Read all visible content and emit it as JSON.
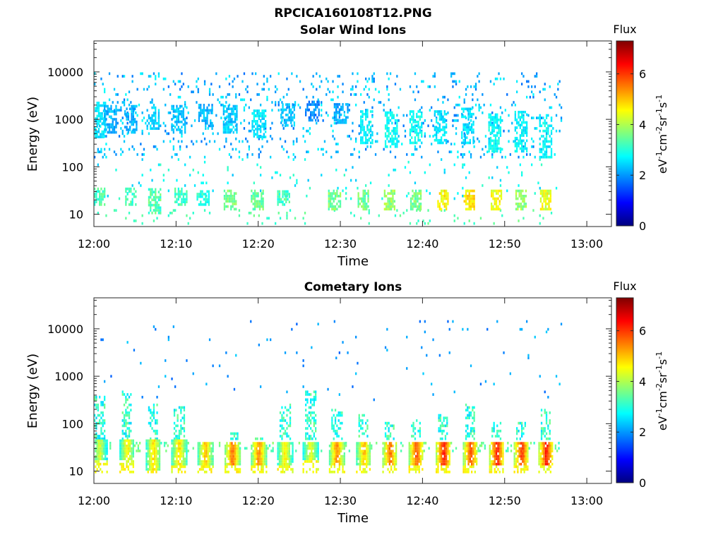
{
  "figure_title": "RPCICA160108T12.PNG",
  "colors": {
    "axis": "#262626",
    "background": "#ffffff",
    "colormap": [
      "#00007f",
      "#0000ff",
      "#007fff",
      "#00ffff",
      "#7fff7f",
      "#ffff00",
      "#ff7f00",
      "#ff0000",
      "#7f0000"
    ]
  },
  "chart_data": [
    {
      "type": "heatmap",
      "title": "Solar Wind Ions",
      "xlabel": "Time",
      "ylabel": "Energy (eV)",
      "xlim": [
        "12:00",
        "13:03"
      ],
      "ylim": [
        5.5,
        45000
      ],
      "y_scale": "log",
      "x_ticks": [
        "12:00",
        "12:10",
        "12:20",
        "12:30",
        "12:40",
        "12:50",
        "13:00"
      ],
      "y_ticks": [
        "10",
        "100",
        "1000",
        "10000"
      ],
      "colorbar": {
        "title": "Flux",
        "label": "eV-1cm-2sr-1s-1",
        "range": [
          0,
          7.3
        ],
        "ticks": [
          "0",
          "2",
          "4",
          "6"
        ]
      },
      "data_extent_x": [
        "12:00",
        "12:57"
      ],
      "grid": false,
      "bursts": [
        {
          "t": 0.5,
          "e_lo": 400,
          "e_hi": 2200,
          "flux": 2.6
        },
        {
          "t": 2.0,
          "e_lo": 500,
          "e_hi": 2000,
          "flux": 2.2
        },
        {
          "t": 4.5,
          "e_lo": 500,
          "e_hi": 1800,
          "flux": 2.2
        },
        {
          "t": 7.2,
          "e_lo": 600,
          "e_hi": 2000,
          "flux": 2.4
        },
        {
          "t": 10.2,
          "e_lo": 500,
          "e_hi": 2000,
          "flux": 2.3
        },
        {
          "t": 13.5,
          "e_lo": 600,
          "e_hi": 2000,
          "flux": 2.2
        },
        {
          "t": 16.5,
          "e_lo": 500,
          "e_hi": 2000,
          "flux": 2.4
        },
        {
          "t": 20.0,
          "e_lo": 400,
          "e_hi": 1600,
          "flux": 2.6
        },
        {
          "t": 23.5,
          "e_lo": 700,
          "e_hi": 2000,
          "flux": 2.3
        },
        {
          "t": 26.5,
          "e_lo": 900,
          "e_hi": 2200,
          "flux": 1.9
        },
        {
          "t": 30.0,
          "e_lo": 800,
          "e_hi": 2000,
          "flux": 2.1
        },
        {
          "t": 33.2,
          "e_lo": 300,
          "e_hi": 1500,
          "flux": 2.7
        },
        {
          "t": 36.2,
          "e_lo": 250,
          "e_hi": 1400,
          "flux": 2.8
        },
        {
          "t": 39.2,
          "e_lo": 300,
          "e_hi": 1500,
          "flux": 2.8
        },
        {
          "t": 42.2,
          "e_lo": 300,
          "e_hi": 1500,
          "flux": 2.6
        },
        {
          "t": 45.5,
          "e_lo": 300,
          "e_hi": 1600,
          "flux": 2.5
        },
        {
          "t": 48.8,
          "e_lo": 200,
          "e_hi": 1300,
          "flux": 2.8
        },
        {
          "t": 52.0,
          "e_lo": 200,
          "e_hi": 1400,
          "flux": 2.7
        },
        {
          "t": 55.0,
          "e_lo": 150,
          "e_hi": 1200,
          "flux": 2.7
        }
      ],
      "low_energy_bands": [
        {
          "t": 0.5,
          "e_lo": 15,
          "e_hi": 35,
          "flux": 3.2
        },
        {
          "t": 4.5,
          "e_lo": 15,
          "e_hi": 35,
          "flux": 3.2
        },
        {
          "t": 7.3,
          "e_lo": 10,
          "e_hi": 35,
          "flux": 3.3
        },
        {
          "t": 10.5,
          "e_lo": 15,
          "e_hi": 35,
          "flux": 3.2
        },
        {
          "t": 13.2,
          "e_lo": 15,
          "e_hi": 30,
          "flux": 3.0
        },
        {
          "t": 16.5,
          "e_lo": 12,
          "e_hi": 30,
          "flux": 3.6
        },
        {
          "t": 19.8,
          "e_lo": 12,
          "e_hi": 30,
          "flux": 3.5
        },
        {
          "t": 23.0,
          "e_lo": 15,
          "e_hi": 30,
          "flux": 3.2
        },
        {
          "t": 29.2,
          "e_lo": 12,
          "e_hi": 30,
          "flux": 3.6
        },
        {
          "t": 32.8,
          "e_lo": 12,
          "e_hi": 30,
          "flux": 3.5
        },
        {
          "t": 36.0,
          "e_lo": 12,
          "e_hi": 30,
          "flux": 3.8
        },
        {
          "t": 39.2,
          "e_lo": 12,
          "e_hi": 30,
          "flux": 3.6
        },
        {
          "t": 42.5,
          "e_lo": 12,
          "e_hi": 30,
          "flux": 4.6
        },
        {
          "t": 45.7,
          "e_lo": 12,
          "e_hi": 30,
          "flux": 4.7
        },
        {
          "t": 49.0,
          "e_lo": 12,
          "e_hi": 30,
          "flux": 4.5
        },
        {
          "t": 52.0,
          "e_lo": 12,
          "e_hi": 30,
          "flux": 3.8
        },
        {
          "t": 55.0,
          "e_lo": 12,
          "e_hi": 30,
          "flux": 4.4
        }
      ]
    },
    {
      "type": "heatmap",
      "title": "Cometary Ions",
      "xlabel": "Time",
      "ylabel": "Energy (eV)",
      "xlim": [
        "12:00",
        "13:03"
      ],
      "ylim": [
        5.5,
        45000
      ],
      "y_scale": "log",
      "x_ticks": [
        "12:00",
        "12:10",
        "12:20",
        "12:30",
        "12:40",
        "12:50",
        "13:00"
      ],
      "y_ticks": [
        "10",
        "100",
        "1000",
        "10000"
      ],
      "colorbar": {
        "title": "Flux",
        "label": "eV-1cm-2sr-1s-1",
        "range": [
          0,
          7.3
        ],
        "ticks": [
          "0",
          "2",
          "4",
          "6"
        ]
      },
      "data_extent_x": [
        "12:00",
        "12:57"
      ],
      "grid": false,
      "bursts": [
        {
          "t": 0.6,
          "e_hi": 350,
          "peak_flux": 4.6,
          "core_lo": 15,
          "core_hi": 45
        },
        {
          "t": 4.0,
          "e_hi": 450,
          "peak_flux": 5.0,
          "core_lo": 15,
          "core_hi": 45
        },
        {
          "t": 7.2,
          "e_hi": 250,
          "peak_flux": 5.2,
          "core_lo": 10,
          "core_hi": 45
        },
        {
          "t": 10.3,
          "e_hi": 220,
          "peak_flux": 5.2,
          "core_lo": 12,
          "core_hi": 45
        },
        {
          "t": 13.5,
          "e_hi": 40,
          "peak_flux": 5.4,
          "core_lo": 12,
          "core_hi": 40
        },
        {
          "t": 16.8,
          "e_hi": 60,
          "peak_flux": 6.0,
          "core_lo": 12,
          "core_hi": 40
        },
        {
          "t": 20.0,
          "e_hi": 50,
          "peak_flux": 5.8,
          "core_lo": 12,
          "core_hi": 40
        },
        {
          "t": 23.2,
          "e_hi": 250,
          "peak_flux": 5.0,
          "core_lo": 12,
          "core_hi": 40
        },
        {
          "t": 26.3,
          "e_hi": 450,
          "peak_flux": 4.8,
          "core_lo": 15,
          "core_hi": 40
        },
        {
          "t": 29.5,
          "e_hi": 200,
          "peak_flux": 5.8,
          "core_lo": 12,
          "core_hi": 40
        },
        {
          "t": 32.8,
          "e_hi": 150,
          "peak_flux": 5.4,
          "core_lo": 12,
          "core_hi": 40
        },
        {
          "t": 36.0,
          "e_hi": 100,
          "peak_flux": 6.0,
          "core_lo": 12,
          "core_hi": 40
        },
        {
          "t": 39.2,
          "e_hi": 120,
          "peak_flux": 6.2,
          "core_lo": 12,
          "core_hi": 40
        },
        {
          "t": 42.5,
          "e_hi": 150,
          "peak_flux": 6.6,
          "core_lo": 12,
          "core_hi": 40
        },
        {
          "t": 45.8,
          "e_hi": 250,
          "peak_flux": 6.2,
          "core_lo": 12,
          "core_hi": 40
        },
        {
          "t": 49.0,
          "e_hi": 100,
          "peak_flux": 6.6,
          "core_lo": 12,
          "core_hi": 40
        },
        {
          "t": 52.0,
          "e_hi": 100,
          "peak_flux": 6.4,
          "core_lo": 12,
          "core_hi": 40
        },
        {
          "t": 55.0,
          "e_hi": 200,
          "peak_flux": 6.6,
          "core_lo": 12,
          "core_hi": 40
        }
      ]
    }
  ]
}
